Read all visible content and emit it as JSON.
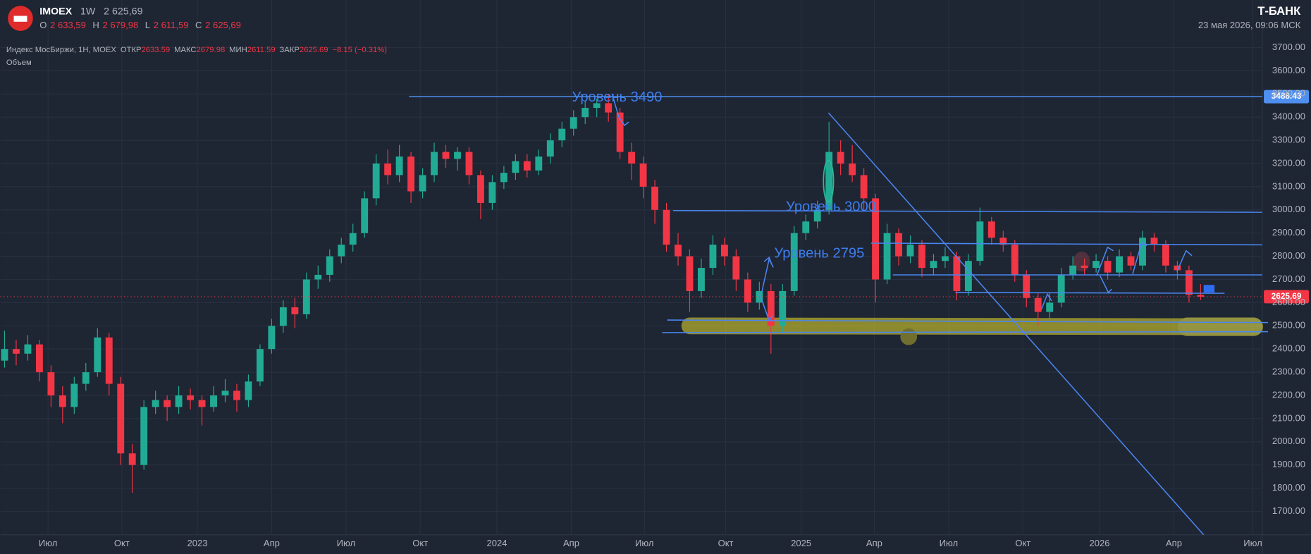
{
  "header": {
    "symbol": "IMOEX",
    "interval": "1W",
    "price": "2 625,69",
    "o_label": "O",
    "o": "2 633,59",
    "h_label": "H",
    "h": "2 679,98",
    "l_label": "L",
    "l": "2 611,59",
    "c_label": "C",
    "c": "2 625,69",
    "brand": "Т‑БАНК",
    "datetime": "23 мая 2026, 09:06 МСК"
  },
  "indicator_line": {
    "name": "Индекс МосБиржи, 1Н, MOEX",
    "open_label": "ОТКР",
    "open": "2633.59",
    "high_label": "МАКС",
    "high": "2679.98",
    "low_label": "МИН",
    "low": "2611.59",
    "close_label": "ЗАКР",
    "close": "2625.69",
    "change": "−8.15 (−0.31%)",
    "volume_label": "Объем"
  },
  "chart_data": {
    "type": "candlestick",
    "colors": {
      "up": "#22ab94",
      "down": "#f23645"
    },
    "xlim": [
      -0.36,
      108.3
    ],
    "ylim": [
      1599,
      3743
    ],
    "xticks": [
      {
        "value": 3.74,
        "label": "Июл"
      },
      {
        "value": 10.1,
        "label": "Окт"
      },
      {
        "value": 16.6,
        "label": "2023"
      },
      {
        "value": 23.0,
        "label": "Апр"
      },
      {
        "value": 29.4,
        "label": "Июл"
      },
      {
        "value": 35.8,
        "label": "Окт"
      },
      {
        "value": 42.4,
        "label": "2024"
      },
      {
        "value": 48.8,
        "label": "Апр"
      },
      {
        "value": 55.1,
        "label": "Июл"
      },
      {
        "value": 62.1,
        "label": "Окт"
      },
      {
        "value": 68.6,
        "label": "2025"
      },
      {
        "value": 74.9,
        "label": "Апр"
      },
      {
        "value": 81.3,
        "label": "Июл"
      },
      {
        "value": 87.7,
        "label": "Окт"
      },
      {
        "value": 94.3,
        "label": "2026"
      },
      {
        "value": 100.7,
        "label": "Апр"
      },
      {
        "value": 107.5,
        "label": "Июл"
      }
    ],
    "yticks": [
      {
        "value": 1700,
        "label": "1700.00"
      },
      {
        "value": 1800,
        "label": "1800.00"
      },
      {
        "value": 1900,
        "label": "1900.00"
      },
      {
        "value": 2000,
        "label": "2000.00"
      },
      {
        "value": 2100,
        "label": "2100.00"
      },
      {
        "value": 2200,
        "label": "2200.00"
      },
      {
        "value": 2300,
        "label": "2300.00"
      },
      {
        "value": 2400,
        "label": "2400.00"
      },
      {
        "value": 2500,
        "label": "2500.00"
      },
      {
        "value": 2600,
        "label": "2600.00"
      },
      {
        "value": 2700,
        "label": "2700.00"
      },
      {
        "value": 2800,
        "label": "2800.00"
      },
      {
        "value": 2900,
        "label": "2900.00"
      },
      {
        "value": 3000,
        "label": "3000.00"
      },
      {
        "value": 3100,
        "label": "3100.00"
      },
      {
        "value": 3200,
        "label": "3200.00"
      },
      {
        "value": 3300,
        "label": "3300.00"
      },
      {
        "value": 3400,
        "label": "3400.00"
      },
      {
        "value": 3500,
        "label": "3500.00"
      },
      {
        "value": 3600,
        "label": "3600.00"
      },
      {
        "value": 3700,
        "label": "3700.00"
      }
    ],
    "grid": true,
    "level": {
      "value": 3488.43,
      "label": "3488.43",
      "color": "#4f8ff0"
    },
    "last_price": {
      "value": 2625.69,
      "label": "2625.69",
      "color": "#f23645"
    },
    "annotations": [
      "Уровень 3490",
      "Уровень 3000",
      "Уровень 2795"
    ],
    "ohlc": [
      [
        2350,
        2480,
        2320,
        2400
      ],
      [
        2400,
        2440,
        2330,
        2380
      ],
      [
        2380,
        2460,
        2350,
        2420
      ],
      [
        2420,
        2440,
        2260,
        2300
      ],
      [
        2300,
        2330,
        2150,
        2200
      ],
      [
        2200,
        2240,
        2080,
        2150
      ],
      [
        2150,
        2280,
        2120,
        2250
      ],
      [
        2250,
        2340,
        2220,
        2300
      ],
      [
        2300,
        2490,
        2280,
        2450
      ],
      [
        2450,
        2470,
        2200,
        2250
      ],
      [
        2250,
        2280,
        1900,
        1950
      ],
      [
        1950,
        1990,
        1780,
        1900
      ],
      [
        1900,
        2180,
        1880,
        2150
      ],
      [
        2150,
        2220,
        2120,
        2180
      ],
      [
        2180,
        2200,
        2090,
        2150
      ],
      [
        2150,
        2240,
        2120,
        2200
      ],
      [
        2200,
        2230,
        2140,
        2180
      ],
      [
        2180,
        2200,
        2070,
        2150
      ],
      [
        2150,
        2240,
        2130,
        2200
      ],
      [
        2200,
        2270,
        2170,
        2220
      ],
      [
        2220,
        2250,
        2130,
        2180
      ],
      [
        2180,
        2290,
        2150,
        2260
      ],
      [
        2260,
        2420,
        2240,
        2400
      ],
      [
        2400,
        2530,
        2380,
        2500
      ],
      [
        2500,
        2610,
        2470,
        2580
      ],
      [
        2580,
        2620,
        2490,
        2550
      ],
      [
        2550,
        2730,
        2530,
        2700
      ],
      [
        2700,
        2760,
        2660,
        2720
      ],
      [
        2720,
        2830,
        2690,
        2800
      ],
      [
        2800,
        2880,
        2770,
        2850
      ],
      [
        2850,
        2940,
        2820,
        2900
      ],
      [
        2900,
        3080,
        2880,
        3050
      ],
      [
        3050,
        3240,
        3020,
        3200
      ],
      [
        3200,
        3260,
        3110,
        3150
      ],
      [
        3150,
        3280,
        3120,
        3230
      ],
      [
        3230,
        3250,
        3030,
        3080
      ],
      [
        3080,
        3180,
        3050,
        3150
      ],
      [
        3150,
        3290,
        3120,
        3250
      ],
      [
        3250,
        3280,
        3180,
        3220
      ],
      [
        3220,
        3270,
        3170,
        3250
      ],
      [
        3250,
        3270,
        3110,
        3150
      ],
      [
        3150,
        3170,
        2960,
        3030
      ],
      [
        3030,
        3150,
        3000,
        3120
      ],
      [
        3120,
        3190,
        3090,
        3160
      ],
      [
        3160,
        3240,
        3130,
        3210
      ],
      [
        3210,
        3240,
        3140,
        3170
      ],
      [
        3170,
        3260,
        3150,
        3230
      ],
      [
        3230,
        3330,
        3200,
        3300
      ],
      [
        3300,
        3380,
        3270,
        3350
      ],
      [
        3350,
        3430,
        3320,
        3400
      ],
      [
        3400,
        3470,
        3370,
        3440
      ],
      [
        3440,
        3480,
        3400,
        3460
      ],
      [
        3460,
        3500,
        3380,
        3420
      ],
      [
        3420,
        3440,
        3220,
        3250
      ],
      [
        3250,
        3290,
        3130,
        3200
      ],
      [
        3200,
        3230,
        3050,
        3100
      ],
      [
        3100,
        3130,
        2940,
        3000
      ],
      [
        3000,
        3030,
        2820,
        2850
      ],
      [
        2850,
        2900,
        2760,
        2800
      ],
      [
        2800,
        2830,
        2560,
        2650
      ],
      [
        2650,
        2790,
        2620,
        2750
      ],
      [
        2750,
        2890,
        2720,
        2850
      ],
      [
        2850,
        2880,
        2760,
        2800
      ],
      [
        2800,
        2830,
        2650,
        2700
      ],
      [
        2700,
        2730,
        2560,
        2600
      ],
      [
        2600,
        2690,
        2570,
        2650
      ],
      [
        2650,
        2680,
        2380,
        2500
      ],
      [
        2500,
        2680,
        2470,
        2650
      ],
      [
        2650,
        2930,
        2630,
        2900
      ],
      [
        2900,
        2980,
        2870,
        2950
      ],
      [
        2950,
        3040,
        2920,
        3000
      ],
      [
        3000,
        3380,
        2980,
        3250
      ],
      [
        3250,
        3300,
        3150,
        3200
      ],
      [
        3200,
        3280,
        3120,
        3150
      ],
      [
        3150,
        3180,
        3000,
        3050
      ],
      [
        3050,
        3070,
        2600,
        2700
      ],
      [
        2700,
        2940,
        2680,
        2900
      ],
      [
        2900,
        2920,
        2760,
        2800
      ],
      [
        2800,
        2890,
        2770,
        2850
      ],
      [
        2850,
        2870,
        2710,
        2750
      ],
      [
        2750,
        2810,
        2720,
        2780
      ],
      [
        2780,
        2840,
        2750,
        2800
      ],
      [
        2800,
        2820,
        2610,
        2650
      ],
      [
        2650,
        2810,
        2630,
        2780
      ],
      [
        2780,
        3010,
        2760,
        2950
      ],
      [
        2950,
        2970,
        2850,
        2880
      ],
      [
        2880,
        2910,
        2820,
        2850
      ],
      [
        2850,
        2870,
        2690,
        2720
      ],
      [
        2720,
        2740,
        2580,
        2620
      ],
      [
        2620,
        2640,
        2500,
        2560
      ],
      [
        2560,
        2640,
        2530,
        2600
      ],
      [
        2600,
        2750,
        2580,
        2720
      ],
      [
        2720,
        2800,
        2700,
        2760
      ],
      [
        2760,
        2790,
        2720,
        2750
      ],
      [
        2750,
        2810,
        2730,
        2780
      ],
      [
        2780,
        2800,
        2700,
        2730
      ],
      [
        2730,
        2830,
        2710,
        2800
      ],
      [
        2800,
        2820,
        2740,
        2760
      ],
      [
        2760,
        2910,
        2740,
        2880
      ],
      [
        2880,
        2900,
        2820,
        2850
      ],
      [
        2850,
        2870,
        2730,
        2760
      ],
      [
        2760,
        2780,
        2700,
        2740
      ],
      [
        2740,
        2760,
        2600,
        2633.59
      ],
      [
        2633.59,
        2679.98,
        2611.59,
        2625.69
      ]
    ]
  }
}
